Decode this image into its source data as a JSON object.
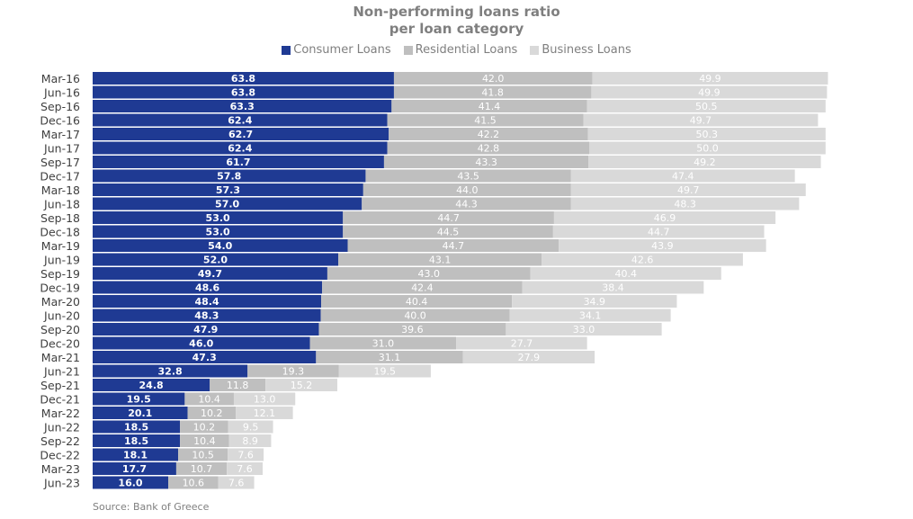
{
  "chart_data": {
    "type": "bar",
    "orientation": "horizontal",
    "stacked": true,
    "title": "Non-performing loans ratio",
    "subtitle": "per loan category",
    "categories": [
      "Mar-16",
      "Jun-16",
      "Sep-16",
      "Dec-16",
      "Mar-17",
      "Jun-17",
      "Sep-17",
      "Dec-17",
      "Mar-18",
      "Jun-18",
      "Sep-18",
      "Dec-18",
      "Mar-19",
      "Jun-19",
      "Sep-19",
      "Dec-19",
      "Mar-20",
      "Jun-20",
      "Sep-20",
      "Dec-20",
      "Mar-21",
      "Jun-21",
      "Sep-21",
      "Dec-21",
      "Mar-22",
      "Jun-22",
      "Sep-22",
      "Dec-22",
      "Mar-23",
      "Jun-23"
    ],
    "series": [
      {
        "name": "Consumer Loans",
        "color": "#1f3a93",
        "label_color": "#ffffff",
        "values": [
          63.8,
          63.8,
          63.3,
          62.4,
          62.7,
          62.4,
          61.7,
          57.8,
          57.3,
          57.0,
          53.0,
          53.0,
          54.0,
          52.0,
          49.7,
          48.6,
          48.4,
          48.3,
          47.9,
          46.0,
          47.3,
          32.8,
          24.8,
          19.5,
          20.1,
          18.5,
          18.5,
          18.1,
          17.7,
          16.0
        ]
      },
      {
        "name": "Residential Loans",
        "color": "#bfbfbf",
        "label_color": "#ffffff",
        "values": [
          42.0,
          41.8,
          41.4,
          41.5,
          42.2,
          42.8,
          43.3,
          43.5,
          44.0,
          44.3,
          44.7,
          44.5,
          44.7,
          43.1,
          43.0,
          42.4,
          40.4,
          40.0,
          39.6,
          31.0,
          31.1,
          19.3,
          11.8,
          10.4,
          10.2,
          10.2,
          10.4,
          10.5,
          10.7,
          10.6
        ]
      },
      {
        "name": "Business Loans",
        "color": "#d9d9d9",
        "label_color": "#ffffff",
        "values": [
          49.9,
          49.9,
          50.5,
          49.7,
          50.3,
          50.0,
          49.2,
          47.4,
          49.7,
          48.3,
          46.9,
          44.7,
          43.9,
          42.6,
          40.4,
          38.4,
          34.9,
          34.1,
          33.0,
          27.7,
          27.9,
          19.5,
          15.2,
          13.0,
          12.1,
          9.5,
          8.9,
          7.6,
          7.6,
          7.6
        ]
      }
    ],
    "legend_position": "top-center",
    "grid": false,
    "xlim": [
      0,
      160
    ]
  },
  "footer": {
    "source": "Source: Bank of Greece"
  }
}
